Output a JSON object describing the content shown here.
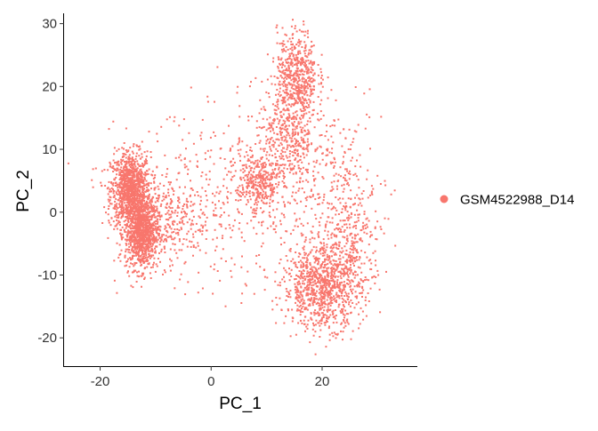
{
  "chart_data": {
    "type": "scatter",
    "title": "",
    "xlabel": "PC_1",
    "ylabel": "PC_2",
    "xlim": [
      -26.5,
      37
    ],
    "ylim": [
      -24.5,
      31.5
    ],
    "xticks": [
      -20,
      0,
      20
    ],
    "yticks": [
      -20,
      -10,
      0,
      10,
      20,
      30
    ],
    "xtick_labels": [
      "-20",
      "0",
      "20"
    ],
    "ytick_labels": [
      "-20",
      "-10",
      "0",
      "10",
      "20",
      "30"
    ],
    "grid": false,
    "legend_position": "right",
    "series": [
      {
        "name": "GSM4522988_D14",
        "color": "#F8766D",
        "clusters": [
          {
            "cx": -14.5,
            "cy": 3.5,
            "sx": 1.8,
            "sy": 3.0,
            "n": 1100
          },
          {
            "cx": -12.5,
            "cy": -3.5,
            "sx": 1.5,
            "sy": 2.8,
            "n": 900
          },
          {
            "cx": -8.0,
            "cy": -1.0,
            "sx": 3.5,
            "sy": 3.0,
            "n": 250
          },
          {
            "cx": 15.5,
            "cy": 22.0,
            "sx": 1.8,
            "sy": 3.5,
            "n": 500
          },
          {
            "cx": 14.0,
            "cy": 12.0,
            "sx": 3.0,
            "sy": 4.5,
            "n": 450
          },
          {
            "cx": 8.5,
            "cy": 4.5,
            "sx": 2.0,
            "sy": 2.5,
            "n": 300
          },
          {
            "cx": 20.0,
            "cy": -12.0,
            "sx": 3.5,
            "sy": 3.2,
            "n": 900
          },
          {
            "cx": 25.0,
            "cy": -5.0,
            "sx": 3.0,
            "sy": 4.5,
            "n": 300
          },
          {
            "cx": 4.0,
            "cy": 2.0,
            "sx": 10.0,
            "sy": 7.5,
            "n": 450
          },
          {
            "cx": 22.0,
            "cy": 5.0,
            "sx": 4.5,
            "sy": 6.0,
            "n": 200
          }
        ]
      }
    ]
  }
}
